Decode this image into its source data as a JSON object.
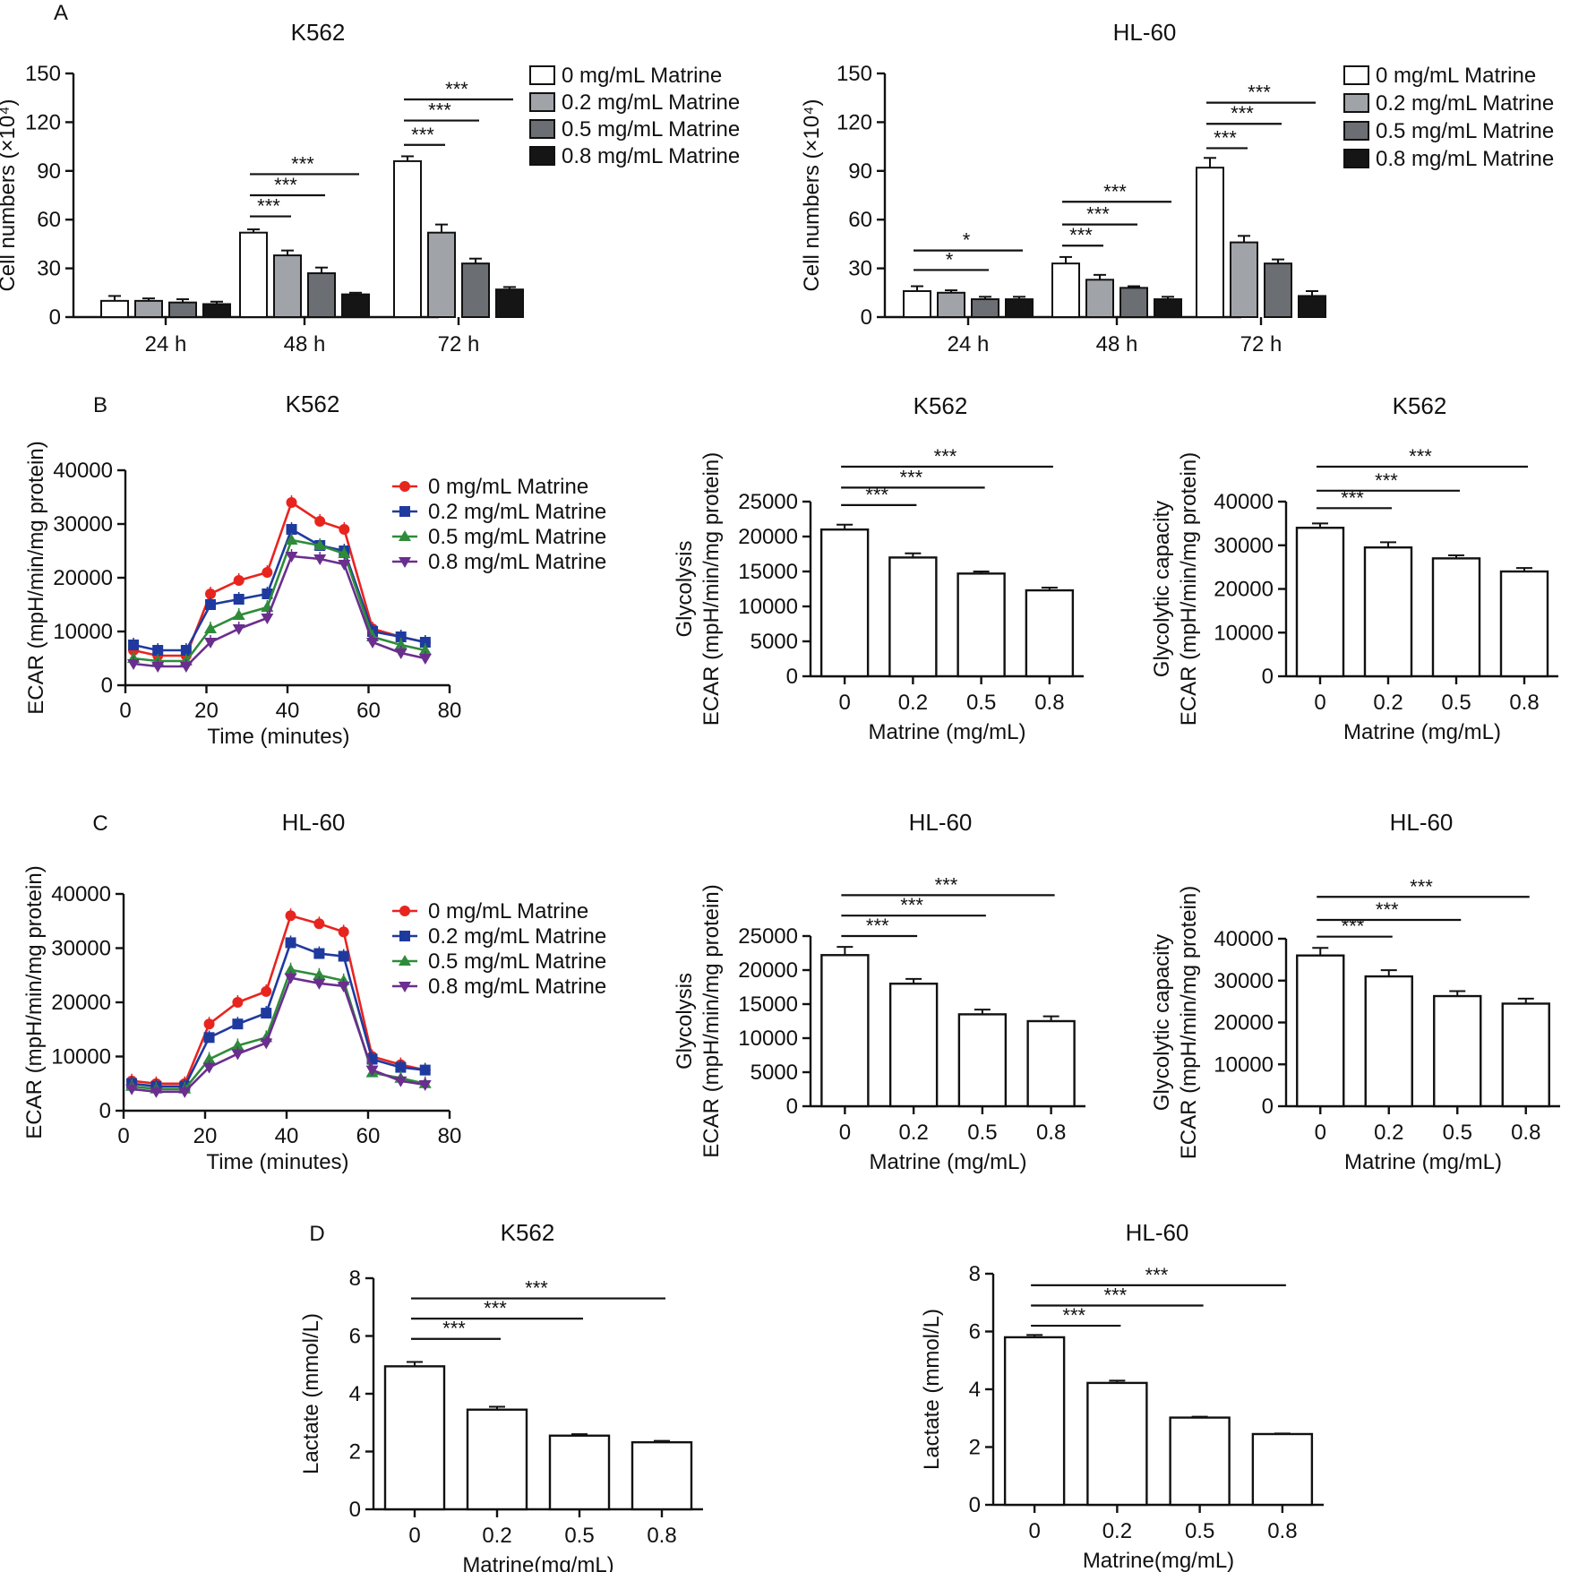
{
  "chart_data": [
    {
      "id": "A1",
      "panel_letter": "A",
      "type": "bar",
      "title": "K562",
      "ylabel": "Cell numbers (×10⁴)",
      "xlabel": "",
      "ylim": [
        0,
        150
      ],
      "yticks": [
        0,
        30,
        60,
        90,
        120,
        150
      ],
      "categories": [
        "24 h",
        "48 h",
        "72 h"
      ],
      "series": [
        {
          "name": "0 mg/mL Matrine",
          "color": "#ffffff",
          "values": [
            10,
            52,
            96
          ],
          "errors": [
            3,
            2,
            3
          ]
        },
        {
          "name": "0.2 mg/mL Matrine",
          "color": "#a0a3a8",
          "values": [
            10,
            38,
            52
          ],
          "errors": [
            1.5,
            3,
            5
          ]
        },
        {
          "name": "0.5 mg/mL Matrine",
          "color": "#6b6e72",
          "values": [
            9,
            27,
            33
          ],
          "errors": [
            2,
            3.5,
            3
          ]
        },
        {
          "name": "0.8 mg/mL Matrine",
          "color": "#151515",
          "values": [
            8,
            14,
            17
          ],
          "errors": [
            1.5,
            1,
            1.5
          ]
        }
      ],
      "significance": [
        {
          "category": 1,
          "from": 0,
          "to": 1,
          "label": "***",
          "y": 62
        },
        {
          "category": 1,
          "from": 0,
          "to": 2,
          "label": "***",
          "y": 75
        },
        {
          "category": 1,
          "from": 0,
          "to": 3,
          "label": "***",
          "y": 88
        },
        {
          "category": 2,
          "from": 0,
          "to": 1,
          "label": "***",
          "y": 106
        },
        {
          "category": 2,
          "from": 0,
          "to": 2,
          "label": "***",
          "y": 121
        },
        {
          "category": 2,
          "from": 0,
          "to": 3,
          "label": "***",
          "y": 134
        }
      ]
    },
    {
      "id": "A2",
      "type": "bar",
      "title": "HL-60",
      "ylabel": "Cell numbers (×10⁴)",
      "xlabel": "",
      "ylim": [
        0,
        150
      ],
      "yticks": [
        0,
        30,
        60,
        90,
        120,
        150
      ],
      "categories": [
        "24 h",
        "48 h",
        "72 h"
      ],
      "series": [
        {
          "name": "0 mg/mL Matrine",
          "color": "#ffffff",
          "values": [
            16,
            33,
            92
          ],
          "errors": [
            3,
            4,
            6
          ]
        },
        {
          "name": "0.2 mg/mL Matrine",
          "color": "#a0a3a8",
          "values": [
            15,
            23,
            46
          ],
          "errors": [
            1.5,
            3,
            4
          ]
        },
        {
          "name": "0.5 mg/mL Matrine",
          "color": "#6b6e72",
          "values": [
            11,
            18,
            33
          ],
          "errors": [
            1.5,
            1,
            2.5
          ]
        },
        {
          "name": "0.8 mg/mL Matrine",
          "color": "#151515",
          "values": [
            11,
            11,
            13
          ],
          "errors": [
            1.5,
            1.5,
            3
          ]
        }
      ],
      "significance": [
        {
          "category": 0,
          "from": 0,
          "to": 2,
          "label": "*",
          "y": 29
        },
        {
          "category": 0,
          "from": 0,
          "to": 3,
          "label": "*",
          "y": 41
        },
        {
          "category": 1,
          "from": 0,
          "to": 1,
          "label": "***",
          "y": 44
        },
        {
          "category": 1,
          "from": 0,
          "to": 2,
          "label": "***",
          "y": 57
        },
        {
          "category": 1,
          "from": 0,
          "to": 3,
          "label": "***",
          "y": 71
        },
        {
          "category": 2,
          "from": 0,
          "to": 1,
          "label": "***",
          "y": 104
        },
        {
          "category": 2,
          "from": 0,
          "to": 2,
          "label": "***",
          "y": 119
        },
        {
          "category": 2,
          "from": 0,
          "to": 3,
          "label": "***",
          "y": 132
        }
      ]
    },
    {
      "id": "B1",
      "panel_letter": "B",
      "type": "line",
      "title": "K562",
      "ylabel": "ECAR (mpH/min/mg protein)",
      "xlabel": "Time (minutes)",
      "xlim": [
        0,
        80
      ],
      "xticks": [
        0,
        20,
        40,
        60,
        80
      ],
      "ylim": [
        0,
        40000
      ],
      "yticks": [
        0,
        10000,
        20000,
        30000,
        40000
      ],
      "x": [
        2,
        8,
        15,
        21,
        28,
        35,
        41,
        48,
        54,
        61,
        68,
        74
      ],
      "series": [
        {
          "name": "0 mg/mL Matrine",
          "color": "#e8241f",
          "marker": "circle",
          "values": [
            6500,
            5500,
            5500,
            17000,
            19500,
            21000,
            34000,
            30500,
            29000,
            10500,
            9000,
            8000
          ]
        },
        {
          "name": "0.2 mg/mL Matrine",
          "color": "#1f3a9e",
          "marker": "square",
          "values": [
            7500,
            6500,
            6500,
            15000,
            16000,
            17000,
            29000,
            26000,
            25000,
            10000,
            9000,
            8000
          ]
        },
        {
          "name": "0.5 mg/mL Matrine",
          "color": "#2e8b3a",
          "marker": "triangle-up",
          "values": [
            5000,
            4500,
            4500,
            10500,
            13000,
            14500,
            27000,
            26000,
            24500,
            9000,
            7500,
            6500
          ]
        },
        {
          "name": "0.8 mg/mL Matrine",
          "color": "#6a2e8e",
          "marker": "triangle-down",
          "values": [
            4000,
            3500,
            3500,
            8000,
            10500,
            12500,
            24000,
            23500,
            22500,
            8000,
            6000,
            5000
          ]
        }
      ]
    },
    {
      "id": "B2",
      "type": "bar",
      "title": "K562",
      "ylabel": "Glycolysis ECAR (mpH/min/mg protein)",
      "ylabel_lines": [
        "Glycolysis",
        "ECAR (mpH/min/mg protein)"
      ],
      "xlabel": "Matrine (mg/mL)",
      "ylim": [
        0,
        25000
      ],
      "yticks": [
        0,
        5000,
        10000,
        15000,
        20000,
        25000
      ],
      "categories": [
        "0",
        "0.2",
        "0.5",
        "0.8"
      ],
      "values": [
        21000,
        17000,
        14700,
        12300
      ],
      "errors": [
        700,
        600,
        300,
        400
      ],
      "significance": [
        {
          "from": 0,
          "to": 1,
          "label": "***",
          "y": 24500
        },
        {
          "from": 0,
          "to": 2,
          "label": "***",
          "y": 27000
        },
        {
          "from": 0,
          "to": 3,
          "label": "***",
          "y": 30000
        }
      ]
    },
    {
      "id": "B3",
      "type": "bar",
      "title": "K562",
      "ylabel": "Glycolytic capacity ECAR (mpH/min/mg protein)",
      "ylabel_lines": [
        "Glycolytic capacity",
        "ECAR (mpH/min/mg protein)"
      ],
      "xlabel": "Matrine (mg/mL)",
      "ylim": [
        0,
        40000
      ],
      "yticks": [
        0,
        10000,
        20000,
        30000,
        40000
      ],
      "categories": [
        "0",
        "0.2",
        "0.5",
        "0.8"
      ],
      "values": [
        34000,
        29500,
        27000,
        24000
      ],
      "errors": [
        1000,
        1200,
        700,
        800
      ],
      "significance": [
        {
          "from": 0,
          "to": 1,
          "label": "***",
          "y": 38500
        },
        {
          "from": 0,
          "to": 2,
          "label": "***",
          "y": 42500
        },
        {
          "from": 0,
          "to": 3,
          "label": "***",
          "y": 48000
        }
      ]
    },
    {
      "id": "C1",
      "panel_letter": "C",
      "type": "line",
      "title": "HL-60",
      "ylabel": "ECAR (mpH/min/mg protein)",
      "xlabel": "Time (minutes)",
      "xlim": [
        0,
        80
      ],
      "xticks": [
        0,
        20,
        40,
        60,
        80
      ],
      "ylim": [
        0,
        40000
      ],
      "yticks": [
        0,
        10000,
        20000,
        30000,
        40000
      ],
      "x": [
        2,
        8,
        15,
        21,
        28,
        35,
        41,
        48,
        54,
        61,
        68,
        74
      ],
      "series": [
        {
          "name": "0 mg/mL Matrine",
          "color": "#e8241f",
          "marker": "circle",
          "values": [
            5500,
            5000,
            5000,
            16000,
            20000,
            22000,
            36000,
            34500,
            33000,
            10000,
            8500,
            7500
          ]
        },
        {
          "name": "0.2 mg/mL Matrine",
          "color": "#1f3a9e",
          "marker": "square",
          "values": [
            5000,
            4500,
            4500,
            13500,
            16000,
            18000,
            31000,
            29000,
            28500,
            9500,
            8000,
            7500
          ]
        },
        {
          "name": "0.5 mg/mL Matrine",
          "color": "#2e8b3a",
          "marker": "triangle-up",
          "values": [
            4500,
            4000,
            4000,
            9500,
            12000,
            13500,
            26000,
            25000,
            24000,
            7000,
            6000,
            5000
          ]
        },
        {
          "name": "0.8 mg/mL Matrine",
          "color": "#6a2e8e",
          "marker": "triangle-down",
          "values": [
            4000,
            3500,
            3500,
            8000,
            10500,
            12500,
            24500,
            23500,
            23000,
            7500,
            5500,
            4800
          ]
        }
      ]
    },
    {
      "id": "C2",
      "type": "bar",
      "title": "HL-60",
      "ylabel": "Glycolysis ECAR (mpH/min/mg protein)",
      "ylabel_lines": [
        "Glycolysis",
        "ECAR (mpH/min/mg protein)"
      ],
      "xlabel": "Matrine (mg/mL)",
      "ylim": [
        0,
        25000
      ],
      "yticks": [
        0,
        5000,
        10000,
        15000,
        20000,
        25000
      ],
      "categories": [
        "0",
        "0.2",
        "0.5",
        "0.8"
      ],
      "values": [
        22200,
        18000,
        13500,
        12500
      ],
      "errors": [
        1200,
        700,
        700,
        700
      ],
      "significance": [
        {
          "from": 0,
          "to": 1,
          "label": "***",
          "y": 25000
        },
        {
          "from": 0,
          "to": 2,
          "label": "***",
          "y": 28000
        },
        {
          "from": 0,
          "to": 3,
          "label": "***",
          "y": 31000
        }
      ]
    },
    {
      "id": "C3",
      "type": "bar",
      "title": "HL-60",
      "ylabel": "Glycolytic capacity ECAR (mpH/min/mg protein)",
      "ylabel_lines": [
        "Glycolytic capacity",
        "ECAR (mpH/min/mg protein)"
      ],
      "xlabel": "Matrine (mg/mL)",
      "ylim": [
        0,
        40000
      ],
      "yticks": [
        0,
        10000,
        20000,
        30000,
        40000
      ],
      "categories": [
        "0",
        "0.2",
        "0.5",
        "0.8"
      ],
      "values": [
        36000,
        31000,
        26300,
        24500
      ],
      "errors": [
        1800,
        1500,
        1200,
        1200
      ],
      "significance": [
        {
          "from": 0,
          "to": 1,
          "label": "***",
          "y": 40500
        },
        {
          "from": 0,
          "to": 2,
          "label": "***",
          "y": 44500
        },
        {
          "from": 0,
          "to": 3,
          "label": "***",
          "y": 50000
        }
      ]
    },
    {
      "id": "D1",
      "panel_letter": "D",
      "type": "bar",
      "title": "K562",
      "ylabel": "Lactate (mmol/L)",
      "xlabel": "Matrine(mg/mL)",
      "ylim": [
        0,
        8
      ],
      "yticks": [
        0,
        2,
        4,
        6,
        8
      ],
      "categories": [
        "0",
        "0.2",
        "0.5",
        "0.8"
      ],
      "values": [
        4.95,
        3.45,
        2.55,
        2.32
      ],
      "errors": [
        0.15,
        0.1,
        0.05,
        0.05
      ],
      "significance": [
        {
          "from": 0,
          "to": 1,
          "label": "***",
          "y": 5.9
        },
        {
          "from": 0,
          "to": 2,
          "label": "***",
          "y": 6.6
        },
        {
          "from": 0,
          "to": 3,
          "label": "***",
          "y": 7.3
        }
      ]
    },
    {
      "id": "D2",
      "type": "bar",
      "title": "HL-60",
      "ylabel": "Lactate (mmol/L)",
      "xlabel": "Matrine(mg/mL)",
      "ylim": [
        0,
        8
      ],
      "yticks": [
        0,
        2,
        4,
        6,
        8
      ],
      "categories": [
        "0",
        "0.2",
        "0.5",
        "0.8"
      ],
      "values": [
        5.8,
        4.22,
        3.02,
        2.45
      ],
      "errors": [
        0.08,
        0.08,
        0.03,
        0.02
      ],
      "significance": [
        {
          "from": 0,
          "to": 1,
          "label": "***",
          "y": 6.2
        },
        {
          "from": 0,
          "to": 2,
          "label": "***",
          "y": 6.9
        },
        {
          "from": 0,
          "to": 3,
          "label": "***",
          "y": 7.6
        }
      ]
    }
  ]
}
